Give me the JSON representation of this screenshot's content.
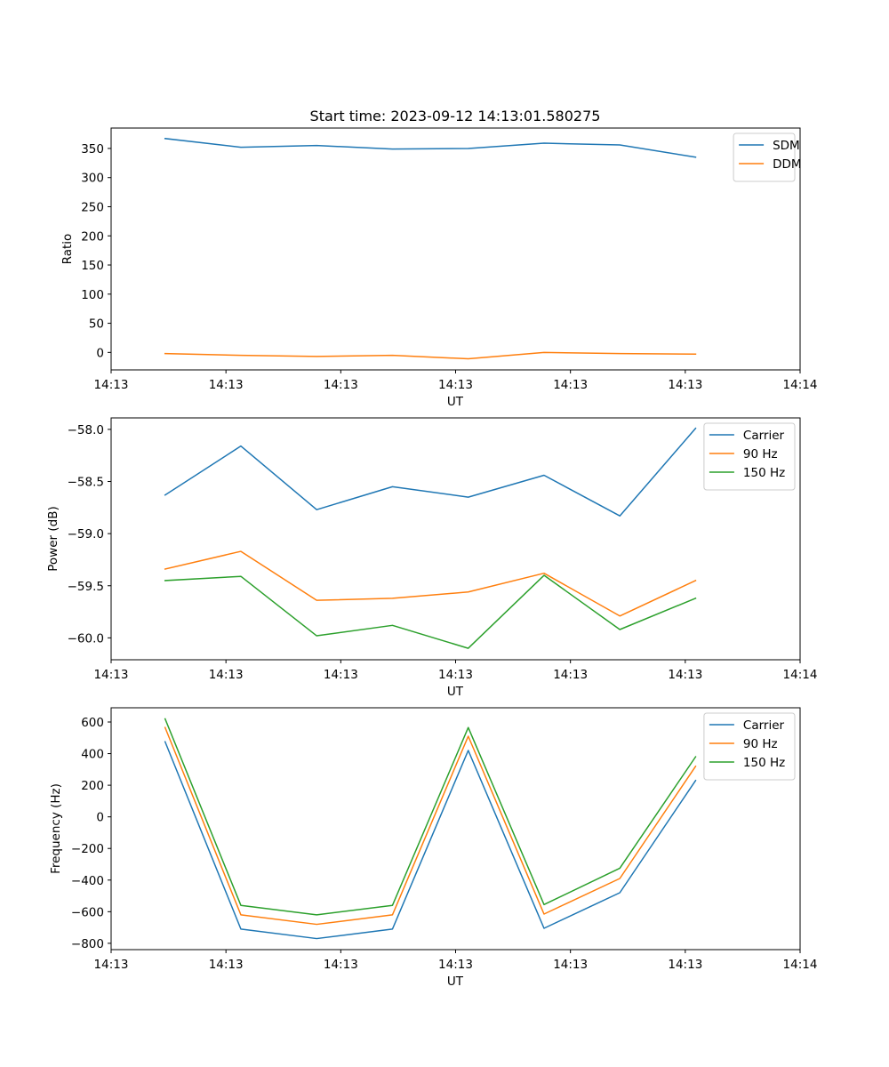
{
  "figure": {
    "title": "Start time: 2023-09-12 14:13:01.580275"
  },
  "chart_data": [
    {
      "type": "line",
      "title": "Start time: 2023-09-12 14:13:01.580275",
      "xlabel": "UT",
      "ylabel": "Ratio",
      "xlim": [
        0,
        30
      ],
      "ylim": [
        -30,
        385
      ],
      "x": [
        2.35,
        5.65,
        8.95,
        12.25,
        15.55,
        18.85,
        22.15,
        25.45
      ],
      "xticks": [
        0,
        5,
        10,
        15,
        20,
        25,
        30
      ],
      "xtick_labels": [
        "14:13",
        "14:13",
        "14:13",
        "14:13",
        "14:13",
        "14:13",
        "14:14"
      ],
      "yticks": [
        0,
        50,
        100,
        150,
        200,
        250,
        300,
        350
      ],
      "ytick_labels": [
        "0",
        "50",
        "100",
        "150",
        "200",
        "250",
        "300",
        "350"
      ],
      "legend": "top-right",
      "series": [
        {
          "name": "SDM",
          "color": "#1f77b4",
          "values": [
            367,
            352,
            355,
            349,
            350,
            359,
            356,
            335
          ]
        },
        {
          "name": "DDM",
          "color": "#ff7f0e",
          "values": [
            -2,
            -5,
            -7,
            -5,
            -11,
            0,
            -2,
            -3
          ]
        }
      ]
    },
    {
      "type": "line",
      "title": "",
      "xlabel": "UT",
      "ylabel": "Power (dB)",
      "xlim": [
        0,
        30
      ],
      "ylim": [
        -60.21,
        -57.89
      ],
      "x": [
        2.35,
        5.65,
        8.95,
        12.25,
        15.55,
        18.85,
        22.15,
        25.45
      ],
      "xticks": [
        0,
        5,
        10,
        15,
        20,
        25,
        30
      ],
      "xtick_labels": [
        "14:13",
        "14:13",
        "14:13",
        "14:13",
        "14:13",
        "14:13",
        "14:14"
      ],
      "yticks": [
        -60.0,
        -59.5,
        -59.0,
        -58.5,
        -58.0
      ],
      "ytick_labels": [
        "−60.0",
        "−59.5",
        "−59.0",
        "−58.5",
        "−58.0"
      ],
      "legend": "top-right",
      "series": [
        {
          "name": "Carrier",
          "color": "#1f77b4",
          "values": [
            -58.63,
            -58.16,
            -58.77,
            -58.55,
            -58.65,
            -58.44,
            -58.83,
            -57.99
          ]
        },
        {
          "name": "90 Hz",
          "color": "#ff7f0e",
          "values": [
            -59.34,
            -59.17,
            -59.64,
            -59.62,
            -59.56,
            -59.38,
            -59.79,
            -59.45
          ]
        },
        {
          "name": "150 Hz",
          "color": "#2ca02c",
          "values": [
            -59.45,
            -59.41,
            -59.98,
            -59.88,
            -60.1,
            -59.4,
            -59.92,
            -59.62
          ]
        }
      ]
    },
    {
      "type": "line",
      "title": "",
      "xlabel": "UT",
      "ylabel": "Frequency (Hz)",
      "xlim": [
        0,
        30
      ],
      "ylim": [
        -840,
        690
      ],
      "x": [
        2.35,
        5.65,
        8.95,
        12.25,
        15.55,
        18.85,
        22.15,
        25.45
      ],
      "xticks": [
        0,
        5,
        10,
        15,
        20,
        25,
        30
      ],
      "xtick_labels": [
        "14:13",
        "14:13",
        "14:13",
        "14:13",
        "14:13",
        "14:13",
        "14:14"
      ],
      "yticks": [
        -800,
        -600,
        -400,
        -200,
        0,
        200,
        400,
        600
      ],
      "ytick_labels": [
        "−800",
        "−600",
        "−400",
        "−200",
        "0",
        "200",
        "400",
        "600"
      ],
      "legend": "top-right",
      "series": [
        {
          "name": "Carrier",
          "color": "#1f77b4",
          "values": [
            475,
            -710,
            -770,
            -710,
            420,
            -705,
            -480,
            230
          ]
        },
        {
          "name": "90 Hz",
          "color": "#ff7f0e",
          "values": [
            565,
            -620,
            -680,
            -620,
            510,
            -615,
            -390,
            320
          ]
        },
        {
          "name": "150 Hz",
          "color": "#2ca02c",
          "values": [
            620,
            -560,
            -620,
            -560,
            565,
            -555,
            -325,
            380
          ]
        }
      ]
    }
  ]
}
